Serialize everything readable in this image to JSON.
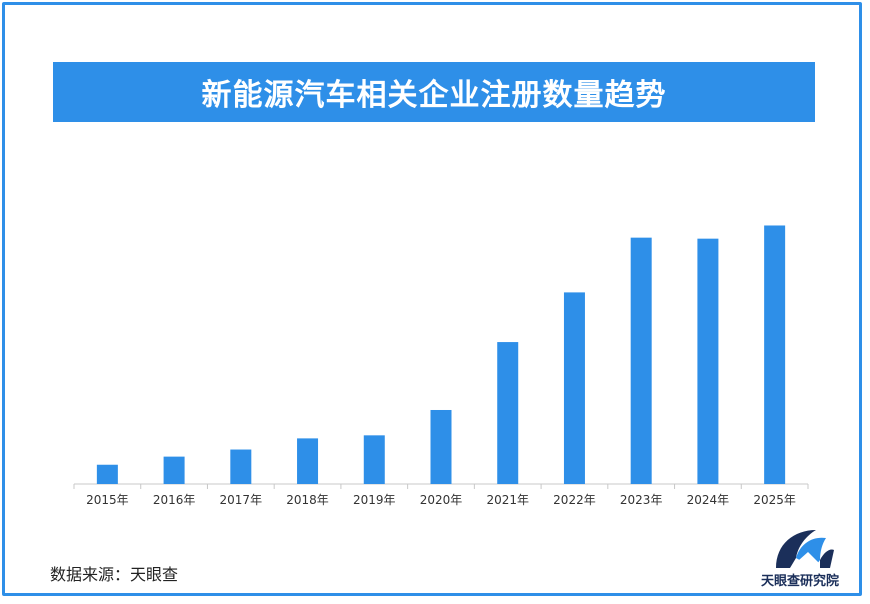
{
  "title": "新能源汽车相关企业注册数量趋势",
  "source": "数据来源：天眼查",
  "logo_text": "天眼查研究院",
  "colors": {
    "accent": "#2e8fe8",
    "bar": "#2e8fe8",
    "axis": "#c8c8c8",
    "logo_navy": "#1b2f5a"
  },
  "chart_data": {
    "type": "bar",
    "title": "新能源汽车相关企业注册数量趋势",
    "categories": [
      "2015年",
      "2016年",
      "2017年",
      "2018年",
      "2019年",
      "2020年",
      "2021年",
      "2022年",
      "2023年",
      "2024年",
      "2025年"
    ],
    "values": [
      19,
      27,
      34,
      45,
      48,
      73,
      140,
      189,
      243,
      242,
      255
    ],
    "ylim": [
      0,
      290
    ],
    "grid": false,
    "legend": "none",
    "xlabel": "",
    "ylabel": ""
  }
}
